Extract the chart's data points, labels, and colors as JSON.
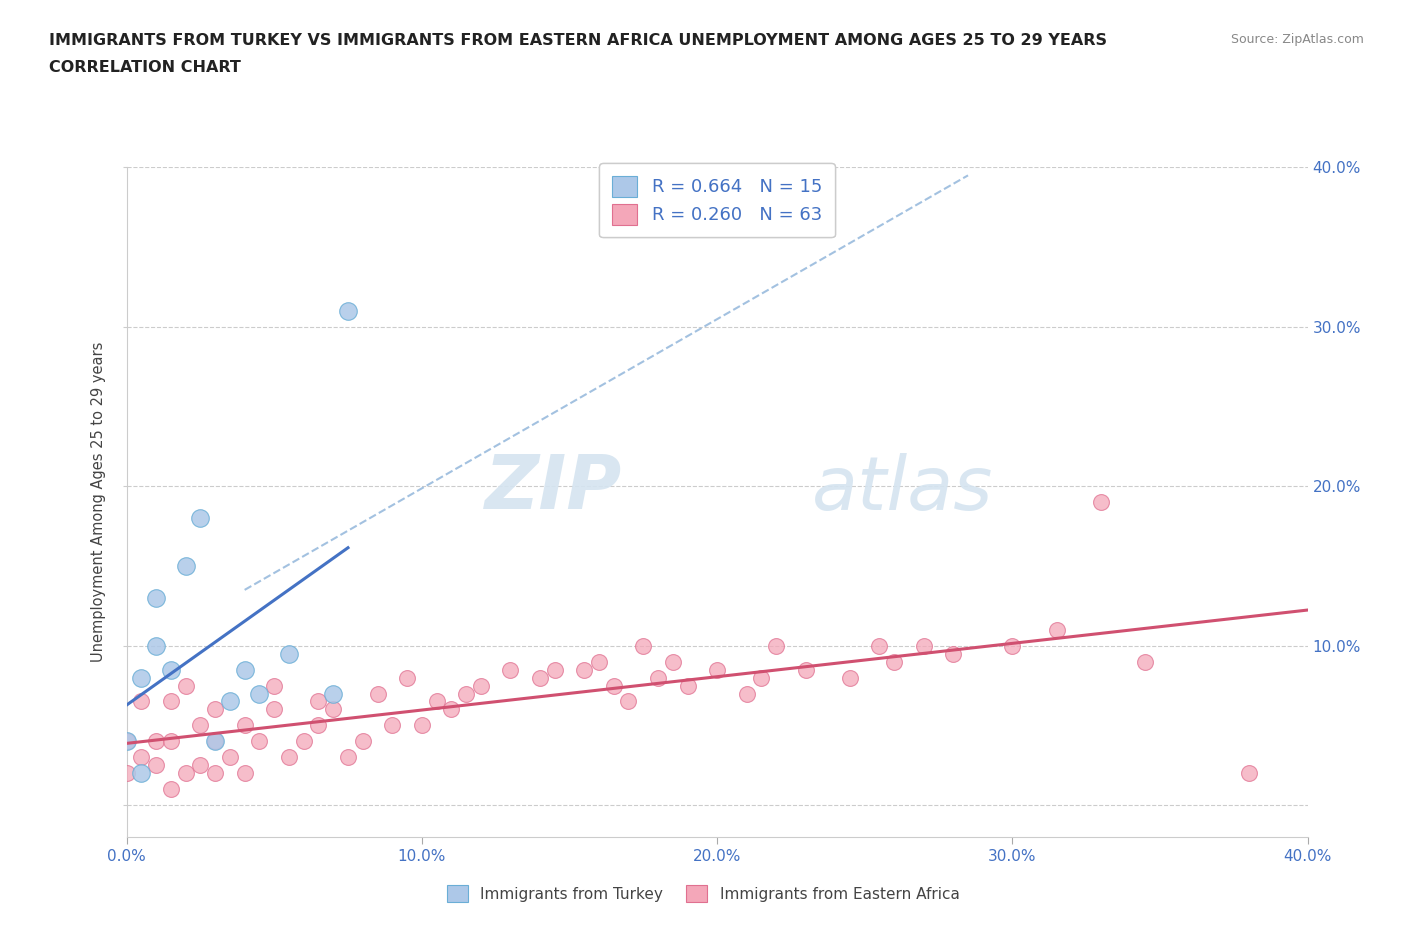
{
  "title_line1": "IMMIGRANTS FROM TURKEY VS IMMIGRANTS FROM EASTERN AFRICA UNEMPLOYMENT AMONG AGES 25 TO 29 YEARS",
  "title_line2": "CORRELATION CHART",
  "source": "Source: ZipAtlas.com",
  "ylabel": "Unemployment Among Ages 25 to 29 years",
  "xlim": [
    0.0,
    0.4
  ],
  "ylim": [
    -0.02,
    0.4
  ],
  "xtick_vals": [
    0.0,
    0.1,
    0.2,
    0.3,
    0.4
  ],
  "ytick_vals": [
    0.0,
    0.1,
    0.2,
    0.3,
    0.4
  ],
  "xtick_labels": [
    "0.0%",
    "10.0%",
    "20.0%",
    "30.0%",
    "40.0%"
  ],
  "ytick_labels": [
    "",
    "10.0%",
    "20.0%",
    "30.0%",
    "40.0%"
  ],
  "turkey_color": "#adc8e8",
  "turkey_edge": "#6aaed6",
  "eastern_africa_color": "#f4a7b9",
  "eastern_africa_edge": "#e07090",
  "turkey_R": 0.664,
  "turkey_N": 15,
  "eastern_africa_R": 0.26,
  "eastern_africa_N": 63,
  "turkey_line_color": "#4472c4",
  "eastern_africa_line_color": "#d05070",
  "dashed_line_color": "#99bbdd",
  "watermark_zip": "ZIP",
  "watermark_atlas": "atlas",
  "scatter_turkey_x": [
    0.0,
    0.005,
    0.005,
    0.01,
    0.01,
    0.015,
    0.02,
    0.025,
    0.03,
    0.035,
    0.04,
    0.045,
    0.055,
    0.07,
    0.075
  ],
  "scatter_turkey_y": [
    0.04,
    0.08,
    0.02,
    0.1,
    0.13,
    0.085,
    0.15,
    0.18,
    0.04,
    0.065,
    0.085,
    0.07,
    0.095,
    0.07,
    0.31
  ],
  "scatter_eastern_x": [
    0.0,
    0.0,
    0.005,
    0.005,
    0.01,
    0.01,
    0.015,
    0.015,
    0.015,
    0.02,
    0.02,
    0.025,
    0.025,
    0.03,
    0.03,
    0.03,
    0.035,
    0.04,
    0.04,
    0.045,
    0.05,
    0.05,
    0.055,
    0.06,
    0.065,
    0.065,
    0.07,
    0.075,
    0.08,
    0.085,
    0.09,
    0.095,
    0.1,
    0.105,
    0.11,
    0.115,
    0.12,
    0.13,
    0.14,
    0.145,
    0.155,
    0.16,
    0.165,
    0.17,
    0.175,
    0.18,
    0.185,
    0.19,
    0.2,
    0.21,
    0.215,
    0.22,
    0.23,
    0.245,
    0.255,
    0.26,
    0.27,
    0.28,
    0.3,
    0.315,
    0.33,
    0.345,
    0.38
  ],
  "scatter_eastern_y": [
    0.02,
    0.04,
    0.03,
    0.065,
    0.025,
    0.04,
    0.01,
    0.04,
    0.065,
    0.02,
    0.075,
    0.025,
    0.05,
    0.02,
    0.04,
    0.06,
    0.03,
    0.02,
    0.05,
    0.04,
    0.06,
    0.075,
    0.03,
    0.04,
    0.05,
    0.065,
    0.06,
    0.03,
    0.04,
    0.07,
    0.05,
    0.08,
    0.05,
    0.065,
    0.06,
    0.07,
    0.075,
    0.085,
    0.08,
    0.085,
    0.085,
    0.09,
    0.075,
    0.065,
    0.1,
    0.08,
    0.09,
    0.075,
    0.085,
    0.07,
    0.08,
    0.1,
    0.085,
    0.08,
    0.1,
    0.09,
    0.1,
    0.095,
    0.1,
    0.11,
    0.19,
    0.09,
    0.02
  ],
  "turkey_line_x": [
    0.0,
    0.075
  ],
  "eastern_line_x": [
    0.0,
    0.4
  ],
  "dashed_line_x1": 0.04,
  "dashed_line_y1": 0.135,
  "dashed_line_x2": 0.285,
  "dashed_line_y2": 0.395
}
